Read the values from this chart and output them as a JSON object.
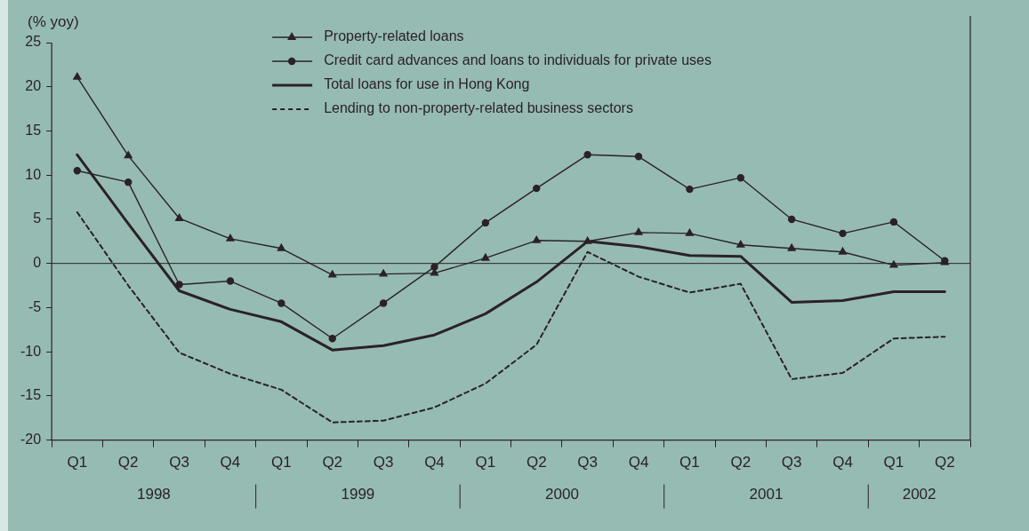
{
  "chart_data": {
    "type": "line",
    "ylabel": "(% yoy)",
    "categories": [
      "Q1",
      "Q2",
      "Q3",
      "Q4",
      "Q1",
      "Q2",
      "Q3",
      "Q4",
      "Q1",
      "Q2",
      "Q3",
      "Q4",
      "Q1",
      "Q2",
      "Q3",
      "Q4",
      "Q1",
      "Q2"
    ],
    "annotations": [
      "1998",
      "1999",
      "2000",
      "2001",
      "2002"
    ],
    "ylim": [
      -20,
      25
    ],
    "yticks": [
      -20,
      -15,
      -10,
      -5,
      0,
      5,
      10,
      15,
      20,
      25
    ],
    "grid": false,
    "legend": "top",
    "ref_lines": [
      {
        "axis": "y",
        "value": 0,
        "color": "#2a2226"
      }
    ],
    "series": [
      {
        "name": "Property-related loans",
        "color": "#2a2226",
        "marker": "triangle",
        "line_style": "solid",
        "values": [
          21.1,
          12.2,
          5.1,
          2.8,
          1.7,
          -1.3,
          -1.2,
          -1.1,
          0.6,
          2.6,
          2.5,
          3.5,
          3.4,
          2.1,
          1.7,
          1.3,
          -0.2,
          0.1
        ]
      },
      {
        "name": "Credit card advances and loans to individuals for private uses",
        "color": "#2a2226",
        "marker": "circle",
        "line_style": "solid",
        "values": [
          10.5,
          9.2,
          -2.4,
          -2.0,
          -4.5,
          -8.5,
          -4.5,
          -0.4,
          4.6,
          8.5,
          12.3,
          12.1,
          8.4,
          9.7,
          5.0,
          3.4,
          4.7,
          0.3
        ]
      },
      {
        "name": "Total loans for use in Hong Kong",
        "color": "#2a2226",
        "marker": "none",
        "line_style": "solid",
        "values": [
          12.3,
          4.5,
          -3.1,
          -5.2,
          -6.6,
          -9.8,
          -9.3,
          -8.1,
          -5.7,
          -2.1,
          2.5,
          1.9,
          0.9,
          0.8,
          -4.4,
          -4.2,
          -3.2,
          -3.2
        ]
      },
      {
        "name": "Lending to non-property-related business sectors",
        "color": "#2a2226",
        "marker": "none",
        "line_style": "dashed",
        "values": [
          5.8,
          -2.5,
          -10.1,
          -12.5,
          -14.3,
          -18.0,
          -17.8,
          -16.3,
          -13.6,
          -9.2,
          1.3,
          -1.5,
          -3.3,
          -2.3,
          -13.1,
          -12.4,
          -8.5,
          -8.3
        ]
      }
    ]
  }
}
